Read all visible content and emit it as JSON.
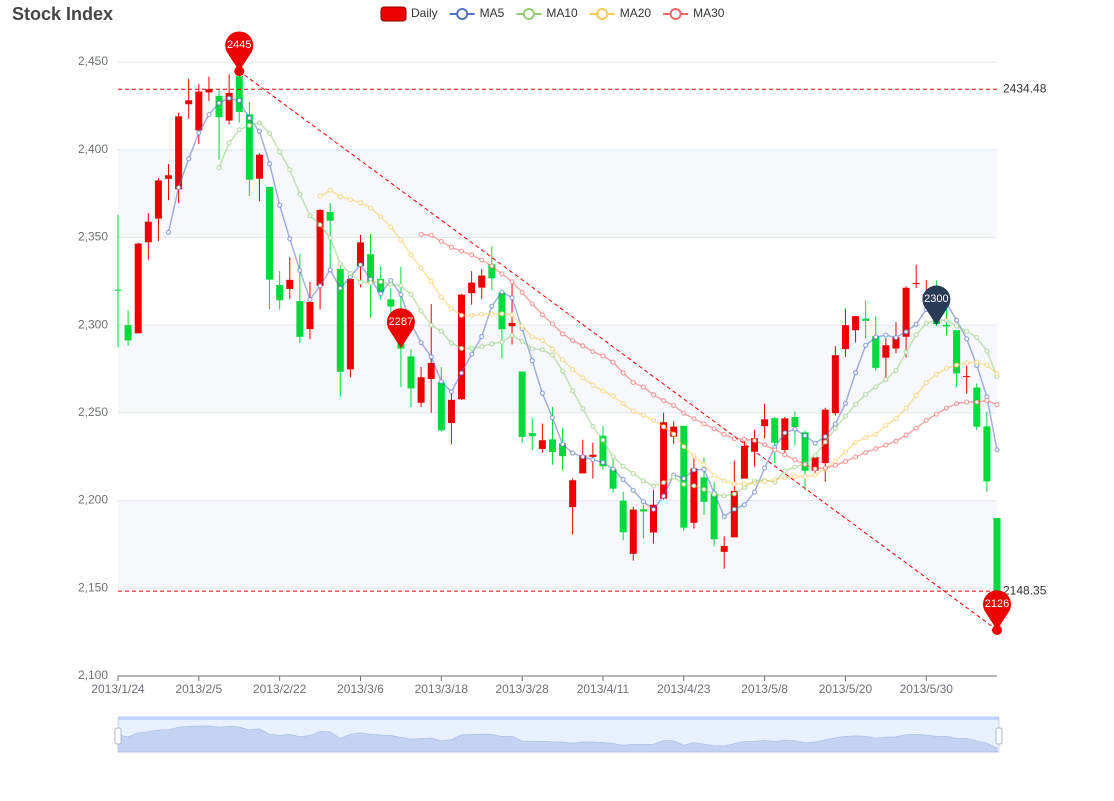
{
  "chart_data": {
    "type": "candlestick",
    "title": "Stock Index",
    "categories": [
      "2013/1/24",
      null,
      null,
      null,
      null,
      null,
      null,
      null,
      "2013/2/5",
      null,
      null,
      null,
      null,
      null,
      null,
      null,
      "2013/2/22",
      null,
      null,
      null,
      null,
      null,
      null,
      null,
      "2013/3/6",
      null,
      null,
      null,
      null,
      null,
      null,
      null,
      "2013/3/18",
      null,
      null,
      null,
      null,
      null,
      null,
      null,
      "2013/3/28",
      null,
      null,
      null,
      null,
      null,
      null,
      null,
      "2013/4/11",
      null,
      null,
      null,
      null,
      null,
      null,
      null,
      "2013/4/23",
      null,
      null,
      null,
      null,
      null,
      null,
      null,
      "2013/5/8",
      null,
      null,
      null,
      null,
      null,
      null,
      null,
      "2013/5/20",
      null,
      null,
      null,
      null,
      null,
      null,
      null,
      "2013/5/30",
      null,
      null,
      null,
      null,
      null,
      null,
      null
    ],
    "ylim": [
      2100,
      2450
    ],
    "yticks": [
      {
        "value": 2100,
        "label": "2,100"
      },
      {
        "value": 2150,
        "label": "2,150"
      },
      {
        "value": 2200,
        "label": "2,200"
      },
      {
        "value": 2250,
        "label": "2,250"
      },
      {
        "value": 2300,
        "label": "2,300"
      },
      {
        "value": 2350,
        "label": "2,350"
      },
      {
        "value": 2400,
        "label": "2,400"
      },
      {
        "value": 2450,
        "label": "2,450"
      }
    ],
    "grid": true,
    "split_area": true,
    "legend": "top",
    "series": [
      {
        "name": "Daily",
        "type": "candlestick",
        "up_color": "#ec0000",
        "down_color": "#00da3c",
        "values": [
          [
            2320.26,
            2320.26,
            2287.3,
            2362.94
          ],
          [
            2300,
            2291.3,
            2288.26,
            2308.38
          ],
          [
            2295.35,
            2346.5,
            2295.35,
            2346.92
          ],
          [
            2347.22,
            2358.98,
            2337.35,
            2363.8
          ],
          [
            2360.75,
            2382.48,
            2347.89,
            2383.76
          ],
          [
            2383.43,
            2385.42,
            2371.23,
            2391.82
          ],
          [
            2377.41,
            2419.02,
            2369.57,
            2421.15
          ],
          [
            2425.92,
            2428.15,
            2417.58,
            2440.38
          ],
          [
            2411,
            2433.13,
            2403.3,
            2437.42
          ],
          [
            2432.68,
            2434.48,
            2427.7,
            2441.73
          ],
          [
            2430.69,
            2418.53,
            2394.22,
            2433.89
          ],
          [
            2416.62,
            2432.4,
            2414.4,
            2443.03
          ],
          [
            2441.91,
            2421.56,
            2415.43,
            2444.8
          ],
          [
            2420.26,
            2382.91,
            2373.53,
            2427.07
          ],
          [
            2383.49,
            2397.18,
            2370.61,
            2397.94
          ],
          [
            2378.82,
            2325.95,
            2309.17,
            2378.82
          ],
          [
            2322.94,
            2314.16,
            2308.76,
            2330.88
          ],
          [
            2320.62,
            2325.82,
            2315.01,
            2338.78
          ],
          [
            2313.74,
            2293.34,
            2289.89,
            2340.71
          ],
          [
            2297.77,
            2313.22,
            2292.03,
            2324.63
          ],
          [
            2322.32,
            2365.59,
            2308.92,
            2366.16
          ],
          [
            2364.54,
            2359.51,
            2330.86,
            2369.65
          ],
          [
            2332.08,
            2273.4,
            2259.25,
            2333.54
          ],
          [
            2274.81,
            2326.31,
            2270.1,
            2328.14
          ],
          [
            2333.61,
            2347.18,
            2321.6,
            2351.44
          ],
          [
            2340.44,
            2324.29,
            2304.27,
            2352.02
          ],
          [
            2326.42,
            2318.61,
            2314.59,
            2333.67
          ],
          [
            2314.68,
            2310.59,
            2296.58,
            2320.96
          ],
          [
            2309.16,
            2286.6,
            2264.83,
            2333.29
          ],
          [
            2282.17,
            2263.97,
            2253.25,
            2286.33
          ],
          [
            2255.77,
            2270.28,
            2253.31,
            2276.22
          ],
          [
            2269.31,
            2278.4,
            2250,
            2312.08
          ],
          [
            2267.29,
            2240.02,
            2239.21,
            2276.05
          ],
          [
            2244.26,
            2257.43,
            2232.02,
            2261.31
          ],
          [
            2257.74,
            2317.37,
            2257.42,
            2317.86
          ],
          [
            2318.21,
            2324.24,
            2311.6,
            2330.81
          ],
          [
            2321.4,
            2328.28,
            2314.97,
            2332
          ],
          [
            2334.74,
            2326.72,
            2319.91,
            2344.89
          ],
          [
            2318.58,
            2297.67,
            2281.12,
            2319.99
          ],
          [
            2299.38,
            2301.26,
            2289,
            2323.48
          ],
          [
            2273.55,
            2236.3,
            2232.91,
            2273.55
          ],
          [
            2238.49,
            2236.62,
            2228.81,
            2246.87
          ],
          [
            2229.46,
            2234.4,
            2227.31,
            2243.95
          ],
          [
            2234.9,
            2227.74,
            2220.44,
            2253.42
          ],
          [
            2232.69,
            2225.29,
            2217.25,
            2241.34
          ],
          [
            2196.24,
            2211.59,
            2180.67,
            2212.59
          ],
          [
            2215.47,
            2225.77,
            2215.47,
            2234.73
          ],
          [
            2224.93,
            2226.13,
            2212.56,
            2233.04
          ],
          [
            2236.98,
            2219.55,
            2217.26,
            2242.48
          ],
          [
            2218.09,
            2206.78,
            2204.44,
            2226.26
          ],
          [
            2199.91,
            2181.94,
            2177.39,
            2204.99
          ],
          [
            2169.63,
            2194.85,
            2165.78,
            2196.43
          ],
          [
            2195.03,
            2193.8,
            2178.47,
            2197.51
          ],
          [
            2181.82,
            2197.6,
            2175.44,
            2206.03
          ],
          [
            2201.12,
            2244.64,
            2200.58,
            2250.11
          ],
          [
            2236.4,
            2242.17,
            2232.26,
            2245.12
          ],
          [
            2242.62,
            2184.54,
            2182.81,
            2242.62
          ],
          [
            2187.35,
            2218.32,
            2184.11,
            2226.12
          ],
          [
            2213.19,
            2199.31,
            2191.85,
            2224.63
          ],
          [
            2203.89,
            2177.91,
            2173.86,
            2210.58
          ],
          [
            2170.78,
            2174.12,
            2161.14,
            2179.65
          ],
          [
            2179.05,
            2205.5,
            2179.05,
            2222.81
          ],
          [
            2212.5,
            2231.17,
            2212.5,
            2236.07
          ],
          [
            2227.86,
            2235.57,
            2219.44,
            2240.26
          ],
          [
            2242.39,
            2246.3,
            2235.42,
            2255.21
          ],
          [
            2246.96,
            2232.97,
            2221.38,
            2247.86
          ],
          [
            2228.82,
            2246.83,
            2225.81,
            2247.67
          ],
          [
            2247.68,
            2241.92,
            2231.36,
            2250.85
          ],
          [
            2238.9,
            2217.01,
            2205.87,
            2239.93
          ],
          [
            2217.09,
            2224.8,
            2213.58,
            2225.19
          ],
          [
            2221.34,
            2251.81,
            2210.77,
            2252.87
          ],
          [
            2249.81,
            2282.87,
            2248.41,
            2288.09
          ],
          [
            2286.33,
            2299.99,
            2281.9,
            2309.39
          ],
          [
            2297.11,
            2305.11,
            2290.12,
            2305.3
          ],
          [
            2303.75,
            2302.4,
            2292.43,
            2314.18
          ],
          [
            2293.81,
            2275.67,
            2274.1,
            2304.95
          ],
          [
            2281.45,
            2288.53,
            2270.25,
            2292.59
          ],
          [
            2286.66,
            2293.08,
            2283.94,
            2301.7
          ],
          [
            2293.4,
            2321.32,
            2281.47,
            2322.1
          ],
          [
            2323.54,
            2324.02,
            2321.17,
            2334.33
          ],
          [
            2316.25,
            2317.75,
            2310.49,
            2325.72
          ],
          [
            2320.74,
            2300.59,
            2299.37,
            2325.53
          ],
          [
            2300.21,
            2299.25,
            2294.11,
            2313.43
          ],
          [
            2297.1,
            2272.42,
            2264.76,
            2297.1
          ],
          [
            2270.71,
            2270.93,
            2260.87,
            2276.86
          ],
          [
            2264.43,
            2242.11,
            2240.07,
            2266.69
          ],
          [
            2242.26,
            2210.9,
            2205.07,
            2250.63
          ],
          [
            2190.1,
            2148.35,
            2126.22,
            2190.1
          ]
        ]
      },
      {
        "name": "MA5",
        "type": "line",
        "color": "#5470c6",
        "values": [
          null,
          null,
          null,
          null,
          null,
          2352.94,
          2378.48,
          2394.81,
          2409.64,
          2420.04,
          2426.66,
          2429.34,
          2428.02,
          2417.98,
          2410.52,
          2392.0,
          2368.35,
          2349.2,
          2331.29,
          2314.5,
          2322.43,
          2331.5,
          2321.01,
          2327.61,
          2334.4,
          2326.14,
          2317.96,
          2325.4,
          2317.45,
          2300.81,
          2290.01,
          2281.97,
          2267.85,
          2262.02,
          2272.7,
          2283.49,
          2293.47,
          2310.81,
          2318.86,
          2315.63,
          2298.05,
          2279.71,
          2261.25,
          2247.26,
          2232.07,
          2227.13,
          2224.96,
          2223.3,
          2221.67,
          2217.96,
          2212.03,
          2205.85,
          2199.38,
          2194.99,
          2202.57,
          2214.61,
          2212.55,
          2217.45,
          2217.8,
          2204.45,
          2190.84,
          2195.03,
          2197.6,
          2204.85,
          2218.53,
          2230.3,
          2238.57,
          2240.72,
          2237.01,
          2232.71,
          2236.47,
          2243.68,
          2255.3,
          2272.92,
          2288.44,
          2293.21,
          2294.34,
          2292.96,
          2296.2,
          2300.52,
          2308.94,
          2311.35,
          2312.59,
          2302.81,
          2292.19,
          2277.06,
          2259.12,
          2228.94
        ]
      },
      {
        "name": "MA10",
        "type": "line",
        "color": "#91cc75",
        "values": [
          null,
          null,
          null,
          null,
          null,
          null,
          null,
          null,
          null,
          null,
          2389.8,
          2403.91,
          2411.42,
          2413.81,
          2415.28,
          2409.33,
          2398.85,
          2388.61,
          2374.63,
          2362.51,
          2357.21,
          2349.92,
          2335.11,
          2329.45,
          2324.45,
          2324.28,
          2324.73,
          2323.2,
          2322.53,
          2317.61,
          2308.07,
          2299.96,
          2296.63,
          2289.74,
          2286.76,
          2286.75,
          2287.72,
          2289.33,
          2290.44,
          2294.17,
          2290.77,
          2286.59,
          2286.03,
          2283.06,
          2273.85,
          2262.59,
          2252.34,
          2242.28,
          2234.47,
          2225.02,
          2219.58,
          2215.4,
          2211.34,
          2208.33,
          2210.27,
          2213.32,
          2209.2,
          2208.42,
          2206.4,
          2203.51,
          2202.73,
          2203.79,
          2207.53,
          2211.33,
          2211.49,
          2210.57,
          2216.8,
          2219.16,
          2220.93,
          2225.62,
          2233.39,
          2241.13,
          2248.01,
          2254.96,
          2260.57,
          2264.84,
          2269.01,
          2274.13,
          2284.56,
          2294.48,
          2301.07,
          2302.85,
          2302.77,
          2299.5,
          2296.36,
          2293.0,
          2285.24,
          2270.76
        ]
      },
      {
        "name": "MA20",
        "type": "line",
        "color": "#fac858",
        "values": [
          null,
          null,
          null,
          null,
          null,
          null,
          null,
          null,
          null,
          null,
          null,
          null,
          null,
          null,
          null,
          null,
          null,
          null,
          null,
          null,
          2373.51,
          2376.92,
          2373.26,
          2371.63,
          2369.86,
          2366.81,
          2361.79,
          2355.91,
          2348.58,
          2340.06,
          2332.64,
          2324.94,
          2315.87,
          2309.59,
          2305.6,
          2305.52,
          2306.22,
          2306.27,
          2306.48,
          2305.89,
          2299.42,
          2293.28,
          2291.33,
          2286.4,
          2280.3,
          2274.67,
          2270.03,
          2265.8,
          2262.45,
          2259.59,
          2255.18,
          2251.0,
          2248.69,
          2245.7,
          2242.06,
          2237.96,
          2230.77,
          2225.35,
          2220.43,
          2214.26,
          2211.15,
          2209.6,
          2209.44,
          2209.83,
          2210.88,
          2211.95,
          2213.0,
          2213.79,
          2213.66,
          2214.56,
          2218.06,
          2222.46,
          2227.77,
          2233.14,
          2236.03,
          2237.71,
          2242.91,
          2246.64,
          2252.74,
          2260.05,
          2267.23,
          2271.99,
          2275.39,
          2277.23,
          2278.46,
          2278.92,
          2277.12,
          2272.45
        ]
      },
      {
        "name": "MA30",
        "type": "line",
        "color": "#ee6666",
        "values": [
          null,
          null,
          null,
          null,
          null,
          null,
          null,
          null,
          null,
          null,
          null,
          null,
          null,
          null,
          null,
          null,
          null,
          null,
          null,
          null,
          null,
          null,
          null,
          null,
          null,
          null,
          null,
          null,
          null,
          null,
          2351.7,
          2351.27,
          2347.72,
          2344.33,
          2342.16,
          2340.12,
          2337.1,
          2333.72,
          2329.2,
          2324.76,
          2318.69,
          2312.16,
          2305.92,
          2300.75,
          2295.02,
          2291.21,
          2288.26,
          2284.94,
          2282.48,
          2278.93,
          2272.81,
          2267.32,
          2264.67,
          2260.38,
          2256.96,
          2254.22,
          2249.75,
          2246.68,
          2243.77,
          2240.9,
          2237.69,
          2235.26,
          2234.97,
          2234.24,
          2231.87,
          2228.83,
          2226.11,
          2223.29,
          2220.6,
          2218.05,
          2218.57,
          2220.11,
          2222.29,
          2224.87,
          2227.44,
          2229.58,
          2231.67,
          2233.9,
          2237.29,
          2241.2,
          2245.73,
          2249.25,
          2252.77,
          2255.26,
          2256.14,
          2256.14,
          2257.02,
          2254.68
        ]
      }
    ],
    "mark_points": [
      {
        "index": 12,
        "value": 2444.8,
        "label": "2445",
        "color": "#ec0000"
      },
      {
        "index": 87,
        "value": 2126.22,
        "label": "2126",
        "color": "#ec0000"
      },
      {
        "index": 81,
        "value": 2300,
        "color": "#293c55"
      },
      {
        "index": 28,
        "value": 2287,
        "color": "#ec0000"
      }
    ],
    "mark_lines": {
      "color": "#ec0000",
      "levels": [
        2434.48,
        2148.35
      ],
      "segment": [
        [
          87,
          2126.22
        ],
        [
          12,
          2444.8
        ]
      ]
    },
    "data_zoom": true
  }
}
